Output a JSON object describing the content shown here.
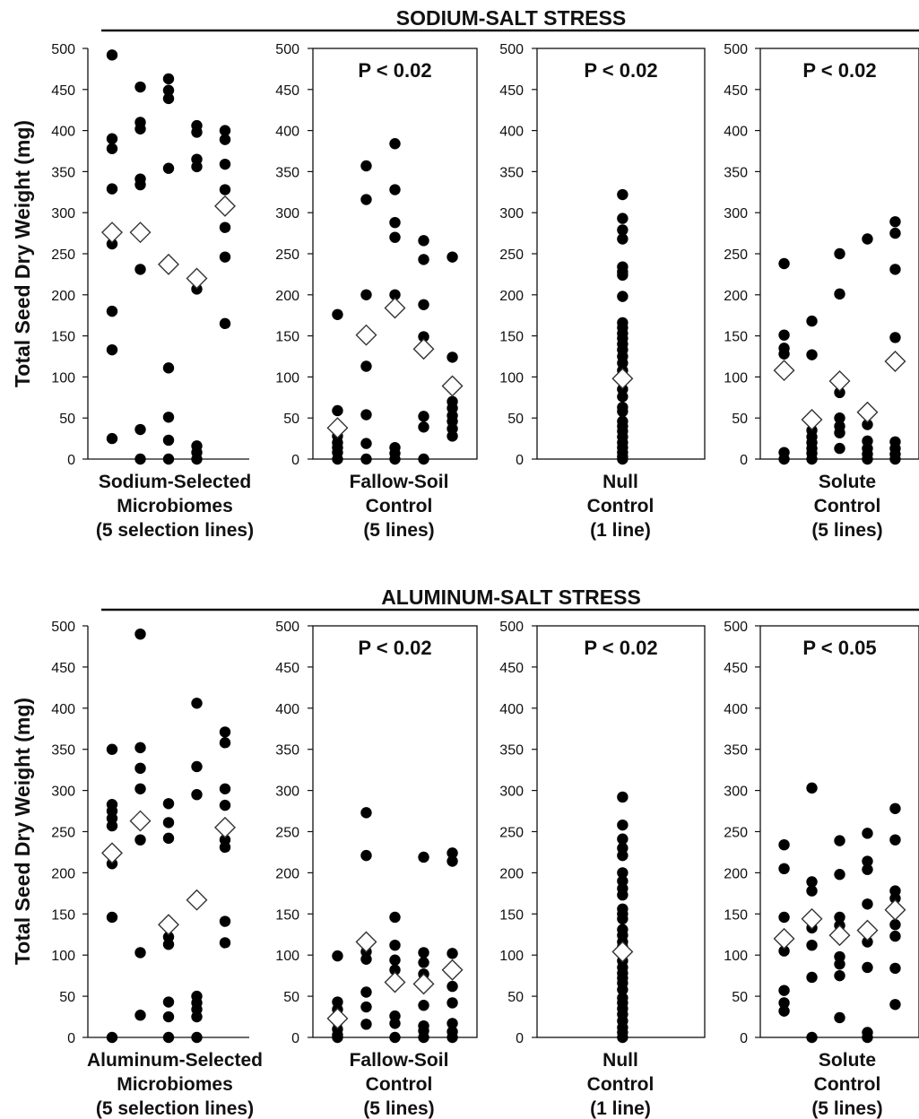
{
  "colors": {
    "point": "#000000",
    "mean_fill": "#ffffff",
    "mean_stroke": "#333333"
  },
  "chart_data": [
    {
      "type": "scatter",
      "section": "SODIUM-SALT STRESS",
      "ylabel": "Total Seed Dry Weight (mg)",
      "ylim": [
        0,
        500
      ],
      "yticks": [
        0,
        50,
        100,
        150,
        200,
        250,
        300,
        350,
        400,
        450,
        500
      ],
      "grid": false,
      "panels": [
        {
          "label": [
            "Sodium-Selected",
            "Microbiomes",
            "(5 selection lines)"
          ],
          "pvalue": "",
          "boxed": false,
          "lines": [
            {
              "points": [
                492,
                390,
                378,
                329,
                262,
                180,
                133,
                25
              ],
              "mean": 276
            },
            {
              "points": [
                453,
                410,
                402,
                341,
                334,
                231,
                36,
                0
              ],
              "mean": 276
            },
            {
              "points": [
                463,
                449,
                439,
                354,
                111,
                51,
                23,
                0
              ],
              "mean": 237
            },
            {
              "points": [
                406,
                398,
                365,
                356,
                207,
                16,
                8,
                0
              ],
              "mean": 220
            },
            {
              "points": [
                400,
                389,
                359,
                328,
                282,
                246,
                165
              ],
              "mean": 308
            }
          ]
        },
        {
          "label": [
            "Fallow-Soil",
            "Control",
            "(5 lines)"
          ],
          "pvalue": "P < 0.02",
          "boxed": true,
          "lines": [
            {
              "points": [
                176,
                59,
                28,
                20,
                14,
                8,
                0
              ],
              "mean": 38
            },
            {
              "points": [
                357,
                316,
                200,
                113,
                54,
                19,
                0
              ],
              "mean": 151
            },
            {
              "points": [
                384,
                328,
                288,
                270,
                200,
                14,
                7,
                0
              ],
              "mean": 184
            },
            {
              "points": [
                266,
                243,
                188,
                149,
                52,
                39,
                0
              ],
              "mean": 134
            },
            {
              "points": [
                246,
                124,
                70,
                62,
                53,
                46,
                37,
                28
              ],
              "mean": 89
            }
          ]
        },
        {
          "label": [
            "Null",
            "Control",
            "(1 line)"
          ],
          "pvalue": "P < 0.02",
          "boxed": true,
          "lines": [
            {
              "points": [
                322,
                293,
                279,
                268,
                234,
                228,
                224,
                198,
                166,
                160,
                153,
                147,
                140,
                133,
                125,
                117,
                108,
                96,
                85,
                76,
                63,
                58,
                46,
                40,
                34,
                27,
                20,
                14,
                8,
                3,
                0
              ],
              "mean": 98
            }
          ]
        },
        {
          "label": [
            "Solute",
            "Control",
            "(5 lines)"
          ],
          "pvalue": "P < 0.02",
          "boxed": true,
          "lines": [
            {
              "points": [
                238,
                151,
                135,
                128,
                8,
                0
              ],
              "mean": 108
            },
            {
              "points": [
                168,
                127,
                35,
                27,
                20,
                13,
                7,
                0
              ],
              "mean": 48
            },
            {
              "points": [
                250,
                201,
                81,
                50,
                40,
                32,
                13
              ],
              "mean": 95
            },
            {
              "points": [
                268,
                42,
                22,
                13,
                6,
                0
              ],
              "mean": 57
            },
            {
              "points": [
                289,
                275,
                231,
                148,
                21,
                13,
                6,
                0
              ],
              "mean": 119
            }
          ]
        }
      ]
    },
    {
      "type": "scatter",
      "section": "ALUMINUM-SALT STRESS",
      "ylabel": "Total Seed Dry Weight (mg)",
      "ylim": [
        0,
        500
      ],
      "yticks": [
        0,
        50,
        100,
        150,
        200,
        250,
        300,
        350,
        400,
        450,
        500
      ],
      "grid": false,
      "panels": [
        {
          "label": [
            "Aluminum-Selected",
            "Microbiomes",
            "(5 selection lines)"
          ],
          "pvalue": "",
          "boxed": false,
          "lines": [
            {
              "points": [
                350,
                283,
                275,
                266,
                257,
                211,
                146,
                0
              ],
              "mean": 224
            },
            {
              "points": [
                490,
                352,
                327,
                302,
                240,
                103,
                27
              ],
              "mean": 263
            },
            {
              "points": [
                284,
                261,
                242,
                122,
                113,
                43,
                25,
                0
              ],
              "mean": 137
            },
            {
              "points": [
                406,
                329,
                295,
                50,
                42,
                34,
                25,
                0
              ],
              "mean": 167
            },
            {
              "points": [
                371,
                358,
                302,
                282,
                240,
                231,
                141,
                115
              ],
              "mean": 255
            }
          ]
        },
        {
          "label": [
            "Fallow-Soil",
            "Control",
            "(5 lines)"
          ],
          "pvalue": "P < 0.02",
          "boxed": true,
          "lines": [
            {
              "points": [
                99,
                43,
                34,
                19,
                10,
                3,
                0
              ],
              "mean": 23
            },
            {
              "points": [
                273,
                221,
                104,
                95,
                55,
                37,
                16
              ],
              "mean": 116
            },
            {
              "points": [
                146,
                112,
                94,
                82,
                26,
                17,
                0
              ],
              "mean": 67
            },
            {
              "points": [
                219,
                103,
                91,
                77,
                39,
                14,
                8,
                0
              ],
              "mean": 65
            },
            {
              "points": [
                224,
                214,
                102,
                62,
                42,
                17,
                7,
                0
              ],
              "mean": 82
            }
          ]
        },
        {
          "label": [
            "Null",
            "Control",
            "(1 line)"
          ],
          "pvalue": "P < 0.02",
          "boxed": true,
          "lines": [
            {
              "points": [
                292,
                258,
                241,
                230,
                221,
                200,
                190,
                181,
                173,
                156,
                150,
                144,
                131,
                124,
                116,
                110,
                103,
                93,
                85,
                78,
                72,
                66,
                58,
                48,
                42,
                35,
                28,
                20,
                12,
                6,
                0
              ],
              "mean": 104
            }
          ]
        },
        {
          "label": [
            "Solute",
            "Control",
            "(5 lines)"
          ],
          "pvalue": "P < 0.05",
          "boxed": true,
          "lines": [
            {
              "points": [
                234,
                205,
                146,
                105,
                57,
                42,
                32
              ],
              "mean": 120
            },
            {
              "points": [
                303,
                189,
                178,
                133,
                112,
                73,
                0
              ],
              "mean": 144
            },
            {
              "points": [
                239,
                198,
                146,
                136,
                98,
                89,
                75,
                24
              ],
              "mean": 124
            },
            {
              "points": [
                248,
                214,
                204,
                162,
                116,
                85,
                6,
                0
              ],
              "mean": 130
            },
            {
              "points": [
                278,
                240,
                178,
                169,
                137,
                123,
                84,
                40
              ],
              "mean": 155
            }
          ]
        }
      ]
    }
  ]
}
